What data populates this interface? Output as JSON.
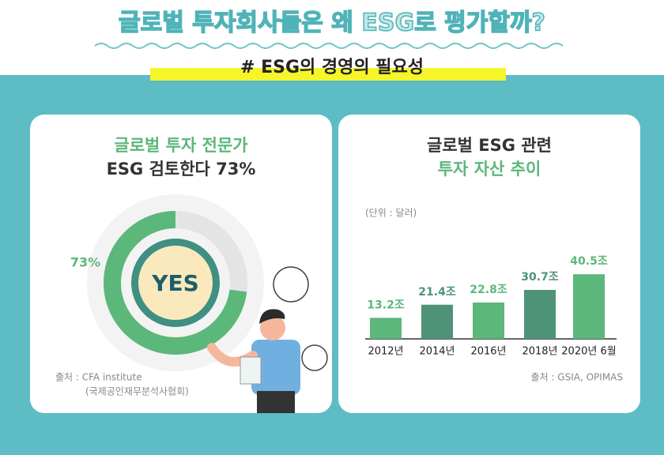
{
  "header": {
    "title": "글로벌 투자회사들은 왜 ESG로 평가할까?",
    "subtitle": "# ESG의 경영의 필요성"
  },
  "chart_data": [
    {
      "type": "donut",
      "title": "글로벌 투자 전문가",
      "subtitle": "ESG 검토한다 73%",
      "center_label": "YES",
      "values": [
        73
      ],
      "value_labels": [
        "73%"
      ],
      "color": "#5cb77a",
      "source": "출처 : CFA institute",
      "source_detail": "(국제공인재무분석사협회)"
    },
    {
      "type": "bar",
      "title": "글로벌 ESG 관련",
      "subtitle": "투자 자산 추이",
      "unit": "(단위 : 달러)",
      "categories": [
        "2012년",
        "2014년",
        "2016년",
        "2018년",
        "2020년 6월"
      ],
      "values": [
        13.2,
        21.4,
        22.8,
        30.7,
        40.5
      ],
      "value_labels": [
        "13.2조",
        "21.4조",
        "22.8조",
        "30.7조",
        "40.5조"
      ],
      "colors": [
        "#5cb77a",
        "#4e9377",
        "#5cb77a",
        "#4e9377",
        "#5cb77a"
      ],
      "source": "출처 : GSIA, OPIMAS"
    }
  ]
}
